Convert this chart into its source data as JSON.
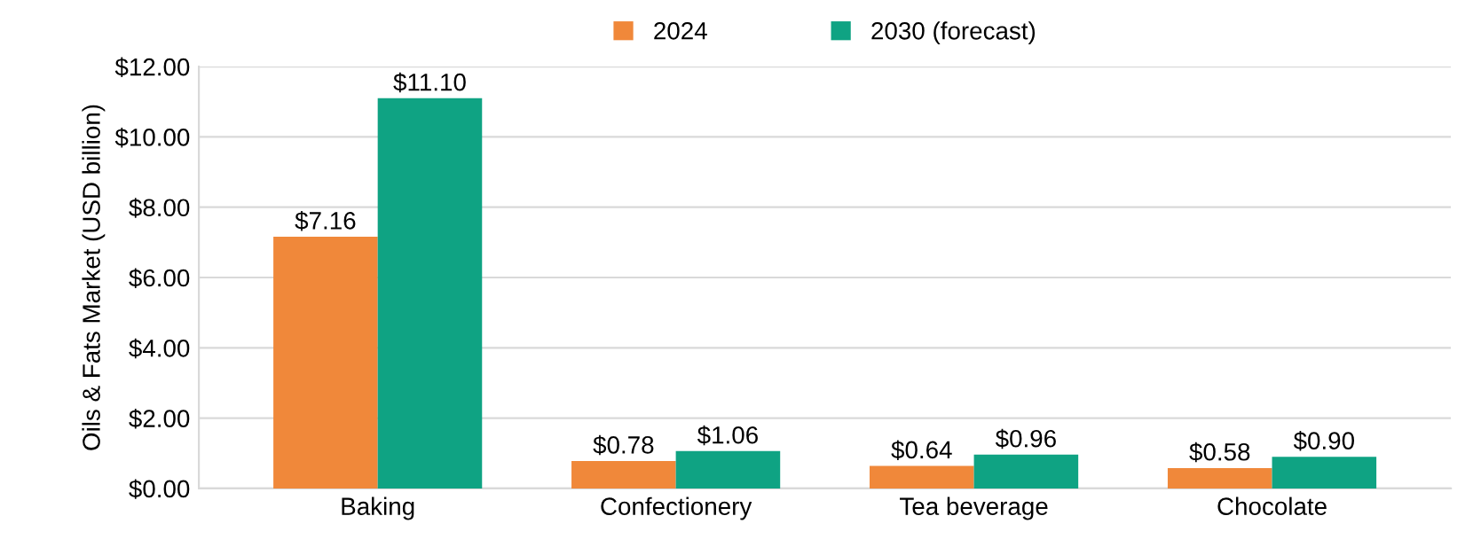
{
  "chart_data": {
    "type": "bar",
    "ylabel": "Oils & Fats Market (USD billion)",
    "categories": [
      "Baking",
      "Confectionery",
      "Tea beverage",
      "Chocolate"
    ],
    "series": [
      {
        "name": "2024",
        "color": "#f0883a",
        "values": [
          7.16,
          0.78,
          0.64,
          0.58
        ],
        "value_labels": [
          "$7.16",
          "$0.78",
          "$0.64",
          "$0.58"
        ]
      },
      {
        "name": "2030 (forecast)",
        "color": "#0fa383",
        "values": [
          11.1,
          1.06,
          0.96,
          0.9
        ],
        "value_labels": [
          "$11.10",
          "$1.06",
          "$0.96",
          "$0.90"
        ]
      }
    ],
    "ylim": [
      0,
      12
    ],
    "yticks": [
      {
        "value": 0,
        "label": "$0.00"
      },
      {
        "value": 2,
        "label": "$2.00"
      },
      {
        "value": 4,
        "label": "$4.00"
      },
      {
        "value": 6,
        "label": "$6.00"
      },
      {
        "value": 8,
        "label": "$8.00"
      },
      {
        "value": 10,
        "label": "$10.00"
      },
      {
        "value": 12,
        "label": "$12.00"
      }
    ],
    "grid": "y",
    "legend": "top"
  }
}
